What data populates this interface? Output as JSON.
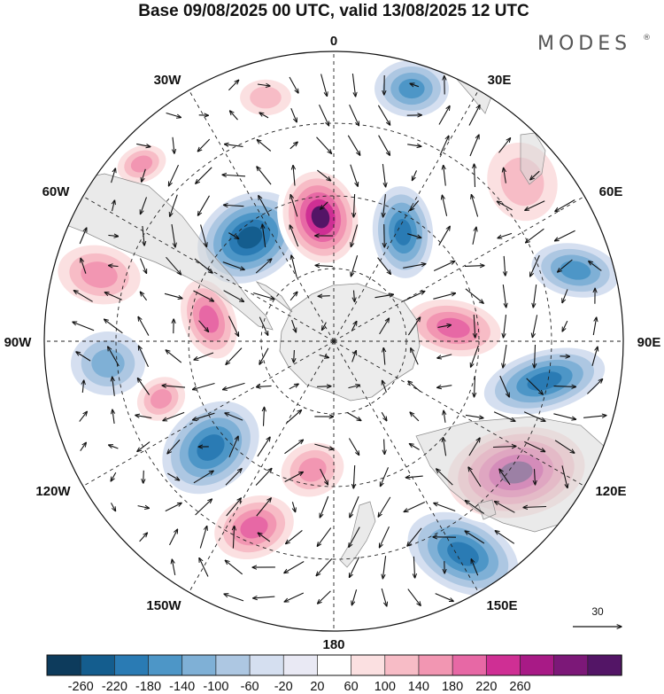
{
  "title": "Base 09/08/2025 00 UTC, valid 13/08/2025 12 UTC",
  "brand": "MODES",
  "brand_mark": "®",
  "longitude_labels": [
    {
      "id": "0",
      "text": "0"
    },
    {
      "id": "30E",
      "text": "30E"
    },
    {
      "id": "60E",
      "text": "60E"
    },
    {
      "id": "90E",
      "text": "90E"
    },
    {
      "id": "120E",
      "text": "120E"
    },
    {
      "id": "150E",
      "text": "150E"
    },
    {
      "id": "180",
      "text": "180"
    },
    {
      "id": "150W",
      "text": "150W"
    },
    {
      "id": "120W",
      "text": "120W"
    },
    {
      "id": "90W",
      "text": "90W"
    },
    {
      "id": "60W",
      "text": "60W"
    },
    {
      "id": "30W",
      "text": "30W"
    }
  ],
  "reference_vector": {
    "label": "30"
  },
  "colorbar": {
    "ticks": [
      "-260",
      "-220",
      "-180",
      "-140",
      "-100",
      "-60",
      "-20",
      "20",
      "60",
      "100",
      "140",
      "180",
      "220",
      "260"
    ],
    "colors": [
      "#0d3b5c",
      "#145d8e",
      "#2a7bb4",
      "#4d96c7",
      "#7fb0d6",
      "#adc7e2",
      "#d5dff0",
      "#e9e9f4",
      "#ffffff",
      "#fbe0e1",
      "#f7bcc6",
      "#f296b2",
      "#e768a5",
      "#cf2f94",
      "#a81a86",
      "#7c1878",
      "#531566"
    ]
  },
  "anomaly_centers": [
    {
      "name": "anomaly-neg-1",
      "value": -140
    },
    {
      "name": "anomaly-pos-1",
      "value": 100
    },
    {
      "name": "anomaly-pos-2",
      "value": 140
    },
    {
      "name": "anomaly-neg-2",
      "value": -220
    },
    {
      "name": "anomaly-pos-3",
      "value": 260
    },
    {
      "name": "anomaly-neg-3",
      "value": -180
    },
    {
      "name": "anomaly-pos-4",
      "value": 100
    },
    {
      "name": "anomaly-pos-5",
      "value": 140
    },
    {
      "name": "anomaly-neg-4",
      "value": -100
    },
    {
      "name": "anomaly-pos-6",
      "value": 180
    },
    {
      "name": "anomaly-pos-7",
      "value": 140
    },
    {
      "name": "anomaly-neg-5",
      "value": -180
    },
    {
      "name": "anomaly-pos-8",
      "value": 140
    },
    {
      "name": "anomaly-pos-9",
      "value": 180
    },
    {
      "name": "anomaly-neg-6",
      "value": -180
    },
    {
      "name": "anomaly-pos-10",
      "value": 180
    },
    {
      "name": "anomaly-neg-7",
      "value": -180
    },
    {
      "name": "anomaly-pos-11",
      "value": 260
    },
    {
      "name": "anomaly-neg-8",
      "value": -140
    }
  ]
}
